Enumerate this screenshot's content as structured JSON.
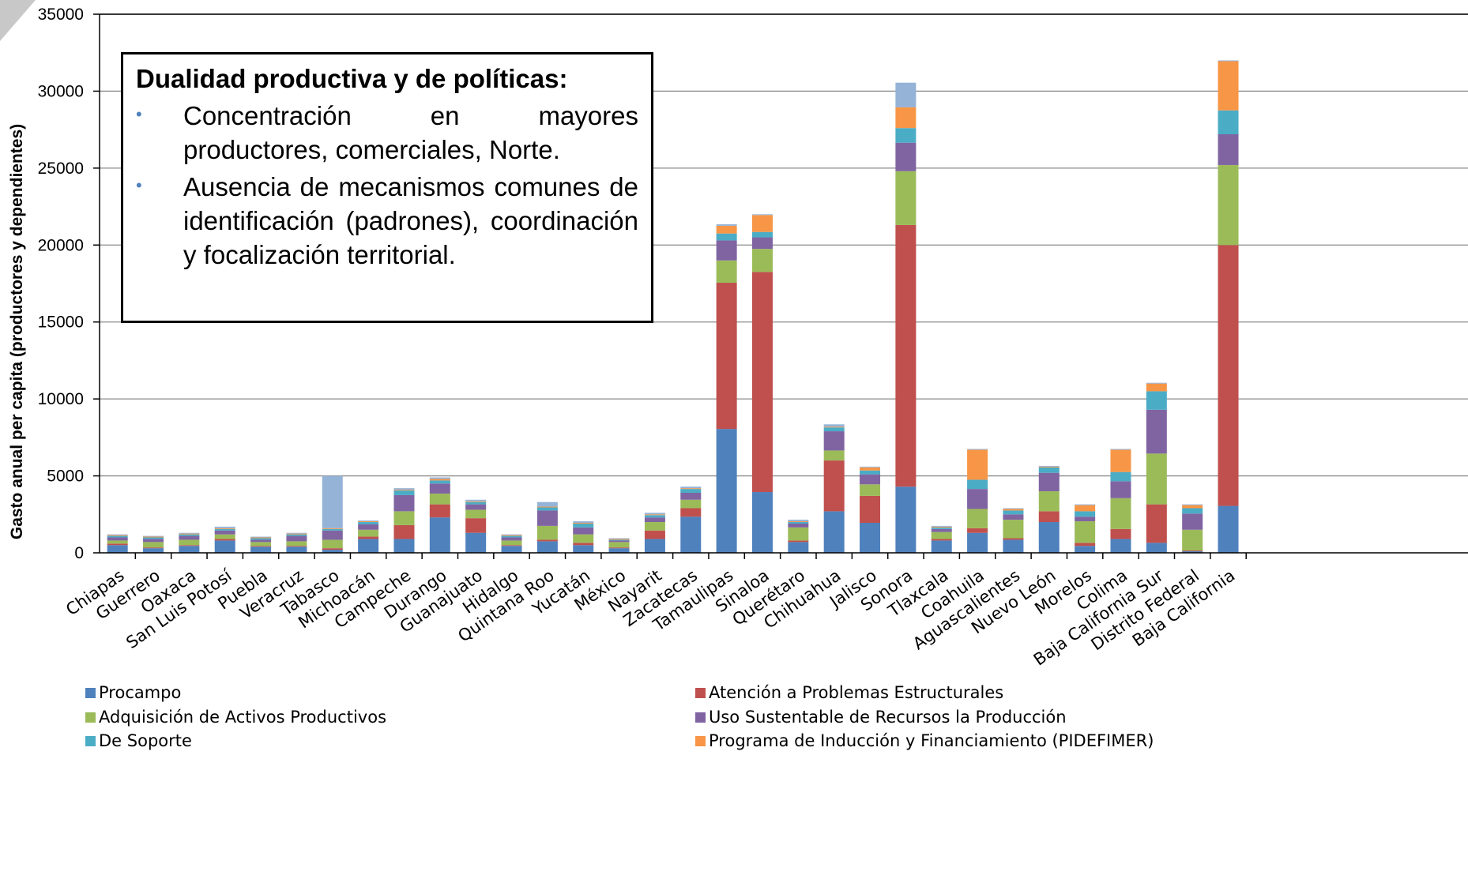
{
  "chart_data": {
    "type": "bar",
    "stacked": true,
    "ylabel": "Gasto anual per capita (productores y dependientes)",
    "xlabel": "",
    "ylim": [
      0,
      35000
    ],
    "yticks": [
      0,
      5000,
      10000,
      15000,
      20000,
      25000,
      30000,
      35000
    ],
    "grid": true,
    "legend_position": "bottom",
    "categories": [
      "Chiapas",
      "Guerrero",
      "Oaxaca",
      "San Luis Potosí",
      "Puebla",
      "Veracruz",
      "Tabasco",
      "Michoacán",
      "Campeche",
      "Durango",
      "Guanajuato",
      "Hidalgo",
      "Quintana Roo",
      "Yucatán",
      "México",
      "Nayarit",
      "Zacatecas",
      "Tamaulipas",
      "Sinaloa",
      "Querétaro",
      "Chihuahua",
      "Jalisco",
      "Sonora",
      "Tlaxcala",
      "Coahuila",
      "Aguascalientes",
      "Nuevo León",
      "Morelos",
      "Colima",
      "Baja California Sur",
      "Distrito Federal",
      "Baja California"
    ],
    "series": [
      {
        "name": "Procampo",
        "color": "#4F81BD",
        "values": [
          500,
          300,
          450,
          800,
          400,
          400,
          200,
          900,
          900,
          2300,
          1300,
          450,
          750,
          500,
          300,
          900,
          2350,
          8050,
          3950,
          700,
          2700,
          1950,
          4300,
          800,
          1300,
          850,
          2000,
          450,
          900,
          650,
          100,
          3050
        ]
      },
      {
        "name": "Atención a Problemas Estructurales",
        "color": "#C0504D",
        "values": [
          100,
          50,
          50,
          100,
          50,
          50,
          100,
          150,
          900,
          850,
          950,
          50,
          100,
          150,
          50,
          550,
          550,
          9500,
          14300,
          100,
          3300,
          1750,
          17000,
          100,
          300,
          100,
          700,
          200,
          650,
          2500,
          50,
          16950
        ]
      },
      {
        "name": "Adquisición de Activos Productivos",
        "color": "#9BBB59",
        "values": [
          200,
          350,
          350,
          300,
          250,
          300,
          550,
          450,
          900,
          700,
          550,
          300,
          900,
          550,
          350,
          550,
          550,
          1450,
          1500,
          850,
          650,
          750,
          3500,
          450,
          1250,
          1200,
          1300,
          1400,
          2000,
          3300,
          1350,
          5200
        ]
      },
      {
        "name": "Uso Sustentable de Recursos la Producción",
        "color": "#8064A2",
        "values": [
          200,
          200,
          250,
          250,
          150,
          350,
          600,
          350,
          1050,
          650,
          350,
          200,
          1000,
          450,
          100,
          300,
          450,
          1300,
          750,
          250,
          1250,
          650,
          1850,
          200,
          1300,
          350,
          1200,
          300,
          1100,
          2850,
          1050,
          2000
        ]
      },
      {
        "name": "De Soporte",
        "color": "#4BACC6",
        "values": [
          100,
          100,
          100,
          100,
          100,
          100,
          100,
          150,
          300,
          200,
          150,
          100,
          200,
          250,
          50,
          150,
          250,
          450,
          350,
          100,
          250,
          250,
          950,
          100,
          600,
          250,
          350,
          350,
          600,
          1200,
          350,
          1550
        ]
      },
      {
        "name": "Programa de Inducción y Financiamiento (PIDEFIMER)",
        "color": "#F79646",
        "values": [
          50,
          50,
          50,
          50,
          50,
          50,
          50,
          50,
          50,
          100,
          50,
          50,
          50,
          50,
          50,
          50,
          50,
          500,
          1100,
          50,
          50,
          200,
          1350,
          50,
          1950,
          100,
          50,
          400,
          1450,
          500,
          200,
          3200
        ]
      },
      {
        "name": "",
        "color": "#95B3D7",
        "values": [
          50,
          50,
          50,
          100,
          50,
          50,
          3400,
          50,
          100,
          100,
          100,
          50,
          300,
          100,
          50,
          100,
          100,
          100,
          50,
          100,
          150,
          50,
          1600,
          50,
          50,
          50,
          50,
          50,
          50,
          50,
          50,
          50
        ]
      }
    ]
  },
  "callout": {
    "title": "Dualidad productiva y de políticas:",
    "bullets": [
      "Concentración en mayores productores, comerciales, Norte.",
      "Ausencia de mecanismos comunes de identificación (padrones), coordinación y focalización territorial."
    ]
  }
}
